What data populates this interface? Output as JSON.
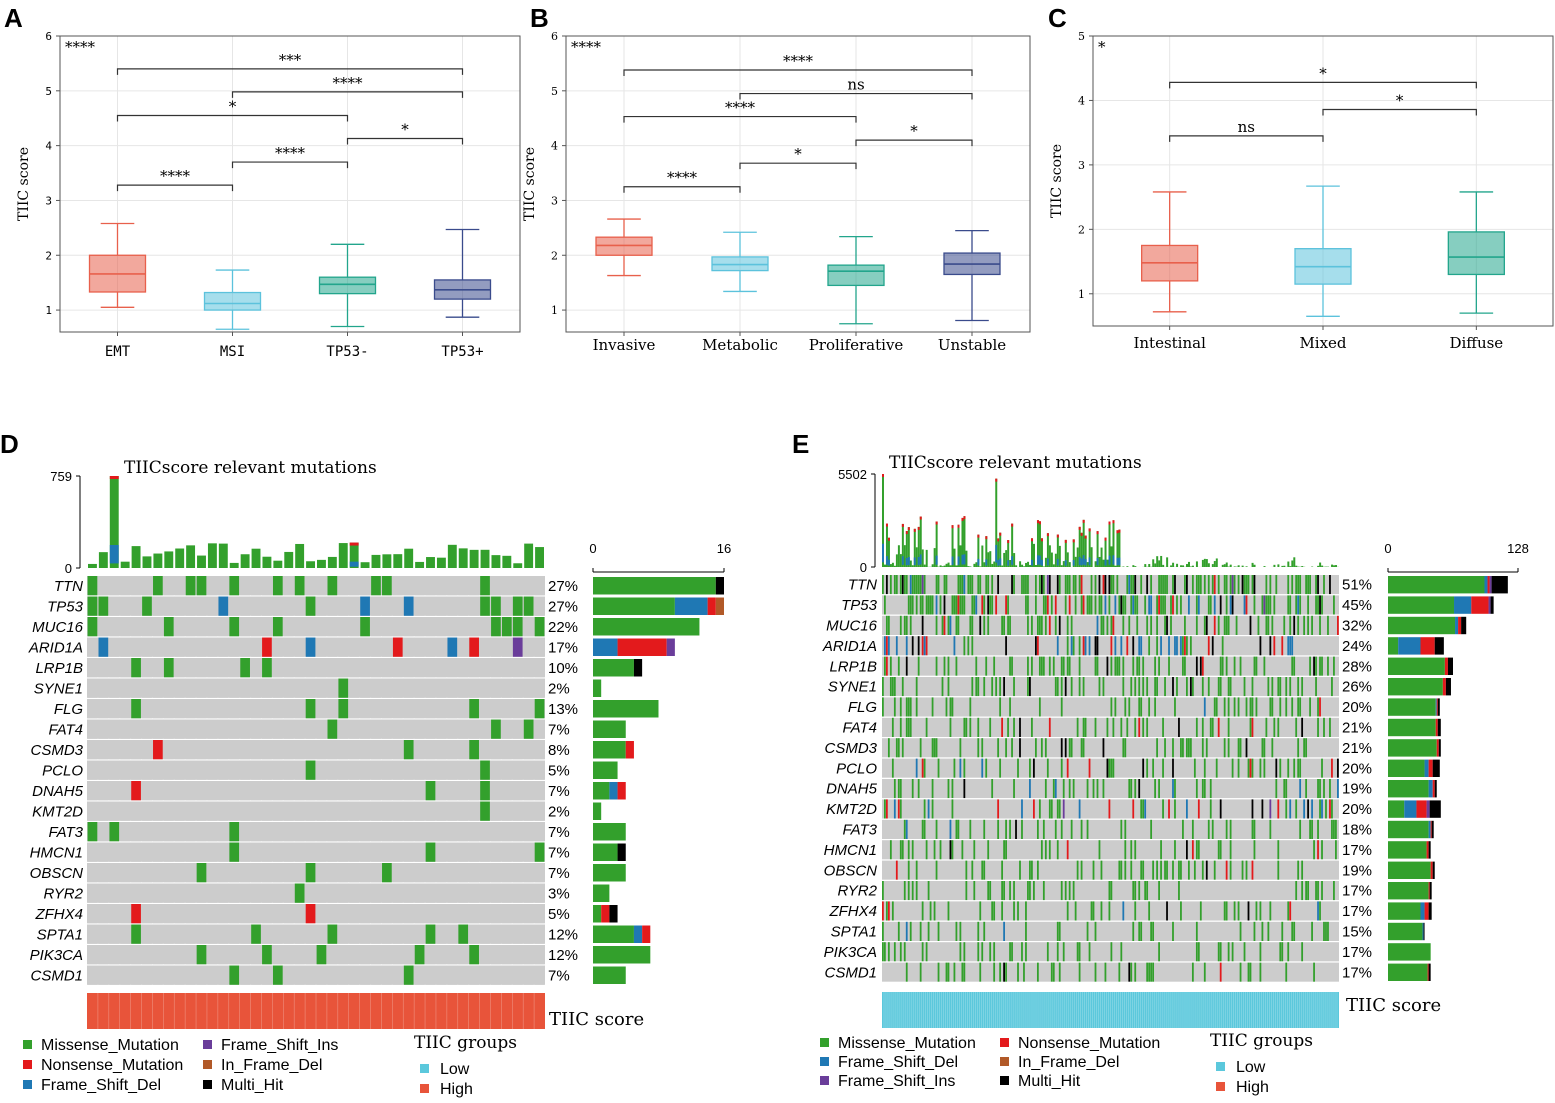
{
  "colors": {
    "EMT": "#e8604c",
    "MSI": "#5cc2dc",
    "TP53neg": "#22a58c",
    "TP53pos": "#3a4b8c",
    "Missense_Mutation": "#33a02c",
    "Nonsense_Mutation": "#e31a1c",
    "Frame_Shift_Del": "#1f78b4",
    "Frame_Shift_Ins": "#6a3d9a",
    "In_Frame_Del": "#b15928",
    "Multi_Hit": "#000000",
    "none": "#cccccc",
    "low": "#5bc8dc",
    "high": "#e8543a",
    "grid": "#e6e6e6"
  },
  "chart_data": [
    {
      "type": "box",
      "panel": "A",
      "ylabel": "TIIC score",
      "ylim": [
        0.6,
        6
      ],
      "yticks": [
        1,
        2,
        3,
        4,
        5,
        6
      ],
      "overall": "****",
      "categories": [
        "EMT",
        "MSI",
        "TP53-",
        "TP53+"
      ],
      "boxes": [
        {
          "whislo": 1.05,
          "q1": 1.33,
          "med": 1.66,
          "q3": 2.0,
          "whishi": 2.58,
          "color": "#e8604c"
        },
        {
          "whislo": 0.65,
          "q1": 1.0,
          "med": 1.12,
          "q3": 1.32,
          "whishi": 1.73,
          "color": "#5cc2dc"
        },
        {
          "whislo": 0.7,
          "q1": 1.3,
          "med": 1.47,
          "q3": 1.6,
          "whishi": 2.2,
          "color": "#22a58c"
        },
        {
          "whislo": 0.87,
          "q1": 1.2,
          "med": 1.37,
          "q3": 1.55,
          "whishi": 2.47,
          "color": "#3a4b8c"
        }
      ],
      "comparisons": [
        {
          "a": 0,
          "b": 3,
          "y": 5.4,
          "label": "***"
        },
        {
          "a": 1,
          "b": 3,
          "y": 4.98,
          "label": "****"
        },
        {
          "a": 0,
          "b": 2,
          "y": 4.55,
          "label": "*"
        },
        {
          "a": 2,
          "b": 3,
          "y": 4.13,
          "label": "*"
        },
        {
          "a": 1,
          "b": 2,
          "y": 3.7,
          "label": "****"
        },
        {
          "a": 0,
          "b": 1,
          "y": 3.28,
          "label": "****"
        }
      ]
    },
    {
      "type": "box",
      "panel": "B",
      "ylabel": "TIIC score",
      "ylim": [
        0.6,
        6
      ],
      "yticks": [
        1,
        2,
        3,
        4,
        5,
        6
      ],
      "overall": "****",
      "categories": [
        "Invasive",
        "Metabolic",
        "Proliferative",
        "Unstable"
      ],
      "boxes": [
        {
          "whislo": 1.63,
          "q1": 2.0,
          "med": 2.18,
          "q3": 2.33,
          "whishi": 2.66,
          "color": "#e8604c"
        },
        {
          "whislo": 1.34,
          "q1": 1.72,
          "med": 1.83,
          "q3": 1.97,
          "whishi": 2.42,
          "color": "#5cc2dc"
        },
        {
          "whislo": 0.75,
          "q1": 1.45,
          "med": 1.71,
          "q3": 1.82,
          "whishi": 2.34,
          "color": "#22a58c"
        },
        {
          "whislo": 0.81,
          "q1": 1.65,
          "med": 1.84,
          "q3": 2.04,
          "whishi": 2.45,
          "color": "#3a4b8c"
        }
      ],
      "comparisons": [
        {
          "a": 0,
          "b": 3,
          "y": 5.38,
          "label": "****"
        },
        {
          "a": 1,
          "b": 3,
          "y": 4.95,
          "label": "ns"
        },
        {
          "a": 0,
          "b": 2,
          "y": 4.53,
          "label": "****"
        },
        {
          "a": 2,
          "b": 3,
          "y": 4.1,
          "label": "*"
        },
        {
          "a": 1,
          "b": 2,
          "y": 3.68,
          "label": "*"
        },
        {
          "a": 0,
          "b": 1,
          "y": 3.25,
          "label": "****"
        }
      ]
    },
    {
      "type": "box",
      "panel": "C",
      "ylabel": "TIIC score",
      "ylim": [
        0.5,
        5
      ],
      "yticks": [
        1,
        2,
        3,
        4,
        5
      ],
      "overall": "*",
      "categories": [
        "Intestinal",
        "Mixed",
        "Diffuse"
      ],
      "boxes": [
        {
          "whislo": 0.72,
          "q1": 1.2,
          "med": 1.48,
          "q3": 1.75,
          "whishi": 2.58,
          "color": "#e8604c"
        },
        {
          "whislo": 0.65,
          "q1": 1.15,
          "med": 1.42,
          "q3": 1.7,
          "whishi": 2.67,
          "color": "#5cc2dc"
        },
        {
          "whislo": 0.7,
          "q1": 1.3,
          "med": 1.57,
          "q3": 1.96,
          "whishi": 2.58,
          "color": "#22a58c"
        }
      ],
      "comparisons": [
        {
          "a": 0,
          "b": 2,
          "y": 4.28,
          "label": "*"
        },
        {
          "a": 1,
          "b": 2,
          "y": 3.86,
          "label": "*"
        },
        {
          "a": 0,
          "b": 1,
          "y": 3.45,
          "label": "ns"
        }
      ]
    },
    {
      "type": "oncoplot",
      "panel": "D",
      "title": "TIICscore relevant mutations",
      "tmb_max": "759",
      "tmb_min": "0",
      "bar_axis": [
        "0",
        "16"
      ],
      "bar_max": 16,
      "n_samples": 42,
      "group_label": "TIIC score",
      "group": "High",
      "genes": [
        {
          "name": "TTN",
          "pct": "27%",
          "counts": {
            "Missense_Mutation": 15,
            "Multi_Hit": 1
          }
        },
        {
          "name": "TP53",
          "pct": "27%",
          "counts": {
            "Missense_Mutation": 10,
            "Nonsense_Mutation": 1,
            "Frame_Shift_Del": 4,
            "In_Frame_Del": 1
          }
        },
        {
          "name": "MUC16",
          "pct": "22%",
          "counts": {
            "Missense_Mutation": 13
          }
        },
        {
          "name": "ARID1A",
          "pct": "17%",
          "counts": {
            "Nonsense_Mutation": 6,
            "Frame_Shift_Del": 3,
            "Frame_Shift_Ins": 1
          }
        },
        {
          "name": "LRP1B",
          "pct": "10%",
          "counts": {
            "Missense_Mutation": 5,
            "Multi_Hit": 1
          }
        },
        {
          "name": "SYNE1",
          "pct": "2%",
          "counts": {
            "Missense_Mutation": 1
          }
        },
        {
          "name": "FLG",
          "pct": "13%",
          "counts": {
            "Missense_Mutation": 8
          }
        },
        {
          "name": "FAT4",
          "pct": "7%",
          "counts": {
            "Missense_Mutation": 4
          }
        },
        {
          "name": "CSMD3",
          "pct": "8%",
          "counts": {
            "Missense_Mutation": 4,
            "Nonsense_Mutation": 1
          }
        },
        {
          "name": "PCLO",
          "pct": "5%",
          "counts": {
            "Missense_Mutation": 3
          }
        },
        {
          "name": "DNAH5",
          "pct": "7%",
          "counts": {
            "Missense_Mutation": 2,
            "Nonsense_Mutation": 1,
            "Frame_Shift_Del": 1
          }
        },
        {
          "name": "KMT2D",
          "pct": "2%",
          "counts": {
            "Missense_Mutation": 1
          }
        },
        {
          "name": "FAT3",
          "pct": "7%",
          "counts": {
            "Missense_Mutation": 4
          }
        },
        {
          "name": "HMCN1",
          "pct": "7%",
          "counts": {
            "Missense_Mutation": 3,
            "Multi_Hit": 1
          }
        },
        {
          "name": "OBSCN",
          "pct": "7%",
          "counts": {
            "Missense_Mutation": 4
          }
        },
        {
          "name": "RYR2",
          "pct": "3%",
          "counts": {
            "Missense_Mutation": 2
          }
        },
        {
          "name": "ZFHX4",
          "pct": "5%",
          "counts": {
            "Missense_Mutation": 1,
            "Nonsense_Mutation": 1,
            "Multi_Hit": 1
          }
        },
        {
          "name": "SPTA1",
          "pct": "12%",
          "counts": {
            "Missense_Mutation": 5,
            "Nonsense_Mutation": 1,
            "Frame_Shift_Del": 1
          }
        },
        {
          "name": "PIK3CA",
          "pct": "12%",
          "counts": {
            "Missense_Mutation": 7
          }
        },
        {
          "name": "CSMD1",
          "pct": "7%",
          "counts": {
            "Missense_Mutation": 4
          }
        }
      ]
    },
    {
      "type": "oncoplot",
      "panel": "E",
      "title": "TIICscore relevant mutations",
      "tmb_max": "5502",
      "tmb_min": "0",
      "bar_axis": [
        "0",
        "128"
      ],
      "bar_max": 128,
      "n_samples": 230,
      "group_label": "TIIC score",
      "group": "Low",
      "genes": [
        {
          "name": "TTN",
          "pct": "51%",
          "counts": {
            "Missense_Mutation": 95,
            "Frame_Shift_Del": 3,
            "Frame_Shift_Ins": 2,
            "Nonsense_Mutation": 2,
            "Multi_Hit": 16
          }
        },
        {
          "name": "TP53",
          "pct": "45%",
          "counts": {
            "Missense_Mutation": 65,
            "Frame_Shift_Del": 17,
            "Nonsense_Mutation": 17,
            "Frame_Shift_Ins": 2,
            "Multi_Hit": 3
          }
        },
        {
          "name": "MUC16",
          "pct": "32%",
          "counts": {
            "Missense_Mutation": 66,
            "Frame_Shift_Del": 3,
            "Nonsense_Mutation": 3,
            "Multi_Hit": 5
          }
        },
        {
          "name": "ARID1A",
          "pct": "24%",
          "counts": {
            "Frame_Shift_Del": 22,
            "Missense_Mutation": 10,
            "Nonsense_Mutation": 14,
            "Multi_Hit": 9
          }
        },
        {
          "name": "LRP1B",
          "pct": "28%",
          "counts": {
            "Missense_Mutation": 56,
            "Nonsense_Mutation": 3,
            "Multi_Hit": 5
          }
        },
        {
          "name": "SYNE1",
          "pct": "26%",
          "counts": {
            "Missense_Mutation": 54,
            "Nonsense_Mutation": 3,
            "Multi_Hit": 5
          }
        },
        {
          "name": "FLG",
          "pct": "20%",
          "counts": {
            "Missense_Mutation": 47,
            "Frame_Shift_Del": 1,
            "Nonsense_Mutation": 1,
            "Multi_Hit": 2
          }
        },
        {
          "name": "FAT4",
          "pct": "21%",
          "counts": {
            "Missense_Mutation": 47,
            "Nonsense_Mutation": 2,
            "Multi_Hit": 3
          }
        },
        {
          "name": "CSMD3",
          "pct": "21%",
          "counts": {
            "Missense_Mutation": 48,
            "Nonsense_Mutation": 2,
            "Multi_Hit": 2
          }
        },
        {
          "name": "PCLO",
          "pct": "20%",
          "counts": {
            "Missense_Mutation": 36,
            "Frame_Shift_Del": 4,
            "Nonsense_Mutation": 4,
            "Multi_Hit": 7
          }
        },
        {
          "name": "DNAH5",
          "pct": "19%",
          "counts": {
            "Missense_Mutation": 40,
            "Frame_Shift_Del": 4,
            "Nonsense_Mutation": 2,
            "Multi_Hit": 2
          }
        },
        {
          "name": "KMT2D",
          "pct": "20%",
          "counts": {
            "Missense_Mutation": 16,
            "Frame_Shift_Del": 12,
            "Nonsense_Mutation": 10,
            "Frame_Shift_Ins": 3,
            "Multi_Hit": 11
          }
        },
        {
          "name": "FAT3",
          "pct": "18%",
          "counts": {
            "Missense_Mutation": 40,
            "Frame_Shift_Del": 2,
            "Nonsense_Mutation": 1,
            "Multi_Hit": 2
          }
        },
        {
          "name": "HMCN1",
          "pct": "17%",
          "counts": {
            "Missense_Mutation": 38,
            "Nonsense_Mutation": 2,
            "Multi_Hit": 2
          }
        },
        {
          "name": "OBSCN",
          "pct": "19%",
          "counts": {
            "Missense_Mutation": 42,
            "Nonsense_Mutation": 2,
            "Multi_Hit": 2
          }
        },
        {
          "name": "RYR2",
          "pct": "17%",
          "counts": {
            "Missense_Mutation": 40,
            "Nonsense_Mutation": 1,
            "Multi_Hit": 2
          }
        },
        {
          "name": "ZFHX4",
          "pct": "17%",
          "counts": {
            "Missense_Mutation": 32,
            "Frame_Shift_Del": 4,
            "Nonsense_Mutation": 4,
            "Multi_Hit": 3
          }
        },
        {
          "name": "SPTA1",
          "pct": "15%",
          "counts": {
            "Missense_Mutation": 34,
            "Frame_Shift_Del": 1,
            "Multi_Hit": 1
          }
        },
        {
          "name": "PIK3CA",
          "pct": "17%",
          "counts": {
            "Missense_Mutation": 42
          }
        },
        {
          "name": "CSMD1",
          "pct": "17%",
          "counts": {
            "Missense_Mutation": 39,
            "Nonsense_Mutation": 1,
            "Multi_Hit": 2
          }
        }
      ]
    }
  ],
  "legend": {
    "items_D": [
      "Missense_Mutation",
      "Nonsense_Mutation",
      "Frame_Shift_Del",
      "Frame_Shift_Ins",
      "In_Frame_Del",
      "Multi_Hit"
    ],
    "items_E": [
      "Missense_Mutation",
      "Frame_Shift_Del",
      "Frame_Shift_Ins",
      "Nonsense_Mutation",
      "In_Frame_Del",
      "Multi_Hit"
    ],
    "groups_title": "TIIC groups",
    "groups": [
      "Low",
      "High"
    ]
  }
}
